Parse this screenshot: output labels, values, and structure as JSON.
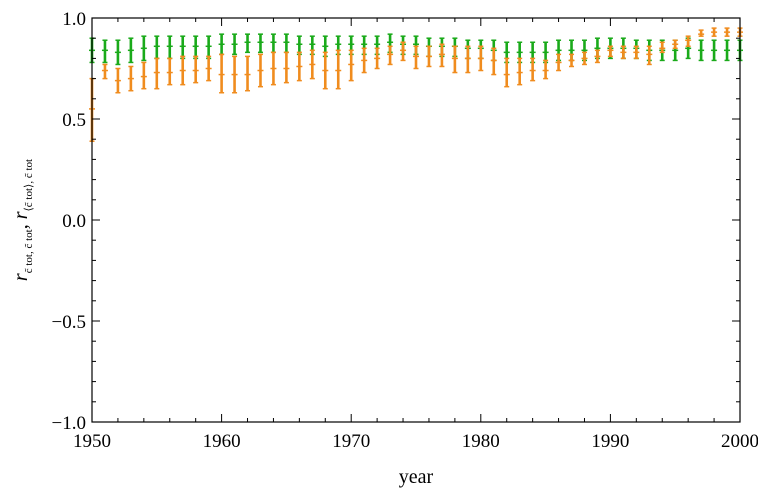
{
  "chart_data": {
    "type": "scatter",
    "title": "",
    "xlabel": "year",
    "ylabel": "r_{c~tot, c~tot}, r_{<c~tot>, c~tot}",
    "xlim": [
      1950,
      2000
    ],
    "ylim": [
      -1.0,
      1.0
    ],
    "xticks": [
      1950,
      1960,
      1970,
      1980,
      1990,
      2000
    ],
    "yticks": [
      -1.0,
      -0.5,
      0.0,
      0.5,
      1.0
    ],
    "xtick_labels": [
      "1950",
      "1960",
      "1970",
      "1980",
      "1990",
      "2000"
    ],
    "ytick_labels": [
      "−1.0",
      "−0.5",
      "0.0",
      "0.5",
      "1.0"
    ],
    "grid": false,
    "legend": "none",
    "x": [
      1950,
      1951,
      1952,
      1953,
      1954,
      1955,
      1956,
      1957,
      1958,
      1959,
      1960,
      1961,
      1962,
      1963,
      1964,
      1965,
      1966,
      1967,
      1968,
      1969,
      1970,
      1971,
      1972,
      1973,
      1974,
      1975,
      1976,
      1977,
      1978,
      1979,
      1980,
      1981,
      1982,
      1983,
      1984,
      1985,
      1986,
      1987,
      1988,
      1989,
      1990,
      1991,
      1992,
      1993,
      1994,
      1995,
      1996,
      1997,
      1998,
      1999,
      2000
    ],
    "series": [
      {
        "color": "#1aaa1a",
        "y": [
          0.84,
          0.84,
          0.83,
          0.84,
          0.85,
          0.86,
          0.86,
          0.86,
          0.86,
          0.86,
          0.87,
          0.87,
          0.88,
          0.88,
          0.88,
          0.88,
          0.87,
          0.87,
          0.86,
          0.87,
          0.87,
          0.87,
          0.87,
          0.88,
          0.87,
          0.87,
          0.86,
          0.86,
          0.86,
          0.85,
          0.85,
          0.84,
          0.83,
          0.83,
          0.83,
          0.83,
          0.84,
          0.84,
          0.84,
          0.85,
          0.85,
          0.85,
          0.85,
          0.84,
          0.84,
          0.84,
          0.85,
          0.84,
          0.84,
          0.84,
          0.84
        ],
        "y_low": [
          0.78,
          0.78,
          0.77,
          0.78,
          0.79,
          0.8,
          0.8,
          0.8,
          0.8,
          0.8,
          0.82,
          0.82,
          0.83,
          0.83,
          0.83,
          0.83,
          0.82,
          0.82,
          0.81,
          0.82,
          0.82,
          0.82,
          0.82,
          0.83,
          0.82,
          0.82,
          0.81,
          0.81,
          0.81,
          0.8,
          0.8,
          0.79,
          0.78,
          0.78,
          0.78,
          0.78,
          0.79,
          0.79,
          0.79,
          0.8,
          0.8,
          0.8,
          0.8,
          0.79,
          0.79,
          0.79,
          0.8,
          0.79,
          0.79,
          0.79,
          0.79
        ],
        "y_high": [
          0.9,
          0.89,
          0.89,
          0.9,
          0.91,
          0.91,
          0.91,
          0.91,
          0.91,
          0.91,
          0.92,
          0.92,
          0.92,
          0.92,
          0.92,
          0.92,
          0.91,
          0.91,
          0.91,
          0.91,
          0.91,
          0.91,
          0.91,
          0.92,
          0.91,
          0.91,
          0.9,
          0.9,
          0.9,
          0.89,
          0.89,
          0.89,
          0.88,
          0.88,
          0.88,
          0.88,
          0.89,
          0.89,
          0.89,
          0.9,
          0.9,
          0.9,
          0.89,
          0.89,
          0.89,
          0.89,
          0.9,
          0.89,
          0.89,
          0.89,
          0.89
        ]
      },
      {
        "color": "#f08c1e",
        "y": [
          0.55,
          0.74,
          0.69,
          0.7,
          0.71,
          0.73,
          0.73,
          0.74,
          0.74,
          0.75,
          0.72,
          0.72,
          0.72,
          0.74,
          0.75,
          0.75,
          0.76,
          0.77,
          0.74,
          0.74,
          0.77,
          0.79,
          0.8,
          0.82,
          0.84,
          0.81,
          0.81,
          0.82,
          0.8,
          0.8,
          0.8,
          0.79,
          0.72,
          0.73,
          0.74,
          0.74,
          0.78,
          0.79,
          0.8,
          0.81,
          0.84,
          0.83,
          0.83,
          0.82,
          0.85,
          0.87,
          0.89,
          0.92,
          0.93,
          0.93,
          0.93
        ],
        "y_low": [
          0.39,
          0.7,
          0.63,
          0.64,
          0.65,
          0.65,
          0.67,
          0.67,
          0.68,
          0.69,
          0.63,
          0.63,
          0.64,
          0.66,
          0.67,
          0.68,
          0.69,
          0.7,
          0.65,
          0.65,
          0.69,
          0.73,
          0.75,
          0.77,
          0.79,
          0.75,
          0.76,
          0.76,
          0.73,
          0.73,
          0.74,
          0.72,
          0.66,
          0.67,
          0.69,
          0.7,
          0.74,
          0.76,
          0.77,
          0.78,
          0.81,
          0.8,
          0.8,
          0.77,
          0.83,
          0.85,
          0.86,
          0.91,
          0.91,
          0.91,
          0.91
        ],
        "y_high": [
          0.7,
          0.77,
          0.75,
          0.76,
          0.78,
          0.8,
          0.8,
          0.81,
          0.81,
          0.81,
          0.82,
          0.81,
          0.81,
          0.82,
          0.83,
          0.83,
          0.83,
          0.84,
          0.83,
          0.84,
          0.84,
          0.85,
          0.85,
          0.86,
          0.88,
          0.86,
          0.86,
          0.87,
          0.86,
          0.86,
          0.86,
          0.85,
          0.8,
          0.8,
          0.8,
          0.79,
          0.82,
          0.82,
          0.83,
          0.84,
          0.86,
          0.86,
          0.86,
          0.86,
          0.88,
          0.89,
          0.91,
          0.94,
          0.95,
          0.95,
          0.95
        ]
      }
    ]
  }
}
